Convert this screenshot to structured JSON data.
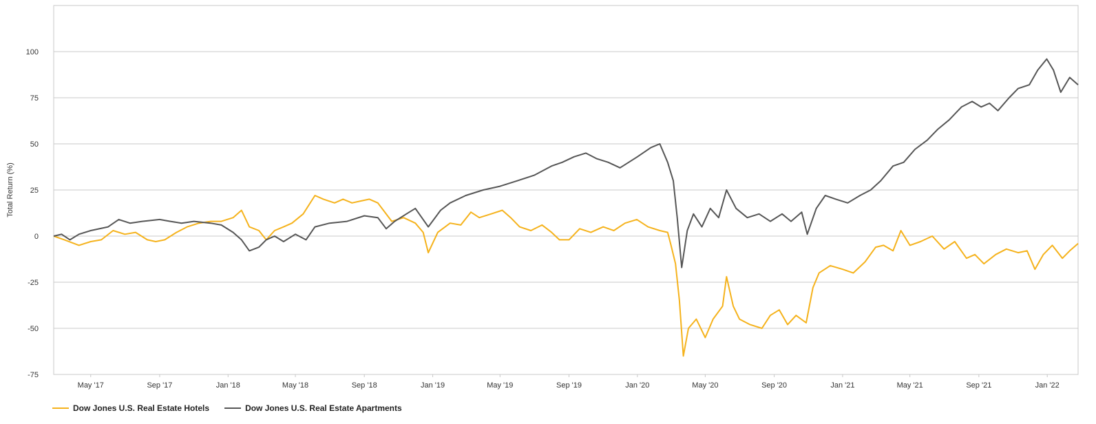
{
  "chart_data": {
    "type": "line",
    "title": "",
    "xlabel": "",
    "ylabel": "Total Return (%)",
    "ylim": [
      -75,
      125
    ],
    "xlim": [
      "2017-02-24",
      "2022-02-25"
    ],
    "yticks": [
      -75,
      -50,
      -25,
      0,
      25,
      50,
      75,
      100
    ],
    "xticks": [
      {
        "date": "2017-05-01",
        "label": "May '17"
      },
      {
        "date": "2017-09-01",
        "label": "Sep '17"
      },
      {
        "date": "2018-01-01",
        "label": "Jan '18"
      },
      {
        "date": "2018-05-01",
        "label": "May '18"
      },
      {
        "date": "2018-09-01",
        "label": "Sep '18"
      },
      {
        "date": "2019-01-01",
        "label": "Jan '19"
      },
      {
        "date": "2019-05-01",
        "label": "May '19"
      },
      {
        "date": "2019-09-01",
        "label": "Sep '19"
      },
      {
        "date": "2020-01-01",
        "label": "Jan '20"
      },
      {
        "date": "2020-05-01",
        "label": "May '20"
      },
      {
        "date": "2020-09-01",
        "label": "Sep '20"
      },
      {
        "date": "2021-01-01",
        "label": "Jan '21"
      },
      {
        "date": "2021-05-01",
        "label": "May '21"
      },
      {
        "date": "2021-09-01",
        "label": "Sep '21"
      },
      {
        "date": "2022-01-01",
        "label": "Jan '22"
      }
    ],
    "grid": "horizontal",
    "legend_position": "bottom-left",
    "series": [
      {
        "name": "Dow Jones U.S. Real Estate Hotels",
        "color": "#F5B21B",
        "points": [
          [
            "2017-02-24",
            0
          ],
          [
            "2017-03-15",
            -2
          ],
          [
            "2017-04-10",
            -5
          ],
          [
            "2017-05-01",
            -3
          ],
          [
            "2017-05-20",
            -2
          ],
          [
            "2017-06-10",
            3
          ],
          [
            "2017-07-01",
            1
          ],
          [
            "2017-07-20",
            2
          ],
          [
            "2017-08-10",
            -2
          ],
          [
            "2017-08-25",
            -3
          ],
          [
            "2017-09-10",
            -2
          ],
          [
            "2017-10-01",
            2
          ],
          [
            "2017-10-20",
            5
          ],
          [
            "2017-11-10",
            7
          ],
          [
            "2017-12-01",
            8
          ],
          [
            "2017-12-20",
            8
          ],
          [
            "2018-01-10",
            10
          ],
          [
            "2018-01-25",
            14
          ],
          [
            "2018-02-08",
            5
          ],
          [
            "2018-02-25",
            3
          ],
          [
            "2018-03-10",
            -2
          ],
          [
            "2018-03-25",
            3
          ],
          [
            "2018-04-10",
            5
          ],
          [
            "2018-04-25",
            7
          ],
          [
            "2018-05-15",
            12
          ],
          [
            "2018-06-05",
            22
          ],
          [
            "2018-06-20",
            20
          ],
          [
            "2018-07-10",
            18
          ],
          [
            "2018-07-25",
            20
          ],
          [
            "2018-08-10",
            18
          ],
          [
            "2018-08-25",
            19
          ],
          [
            "2018-09-10",
            20
          ],
          [
            "2018-09-25",
            18
          ],
          [
            "2018-10-05",
            14
          ],
          [
            "2018-10-20",
            8
          ],
          [
            "2018-11-10",
            10
          ],
          [
            "2018-12-01",
            7
          ],
          [
            "2018-12-15",
            2
          ],
          [
            "2018-12-24",
            -9
          ],
          [
            "2019-01-10",
            2
          ],
          [
            "2019-02-01",
            7
          ],
          [
            "2019-02-20",
            6
          ],
          [
            "2019-03-10",
            13
          ],
          [
            "2019-03-25",
            10
          ],
          [
            "2019-04-15",
            12
          ],
          [
            "2019-05-05",
            14
          ],
          [
            "2019-05-20",
            10
          ],
          [
            "2019-06-05",
            5
          ],
          [
            "2019-06-25",
            3
          ],
          [
            "2019-07-15",
            6
          ],
          [
            "2019-08-01",
            2
          ],
          [
            "2019-08-15",
            -2
          ],
          [
            "2019-09-01",
            -2
          ],
          [
            "2019-09-20",
            4
          ],
          [
            "2019-10-10",
            2
          ],
          [
            "2019-11-01",
            5
          ],
          [
            "2019-11-20",
            3
          ],
          [
            "2019-12-10",
            7
          ],
          [
            "2019-12-31",
            9
          ],
          [
            "2020-01-20",
            5
          ],
          [
            "2020-02-10",
            3
          ],
          [
            "2020-02-24",
            2
          ],
          [
            "2020-03-01",
            -5
          ],
          [
            "2020-03-09",
            -15
          ],
          [
            "2020-03-16",
            -35
          ],
          [
            "2020-03-23",
            -65
          ],
          [
            "2020-04-01",
            -50
          ],
          [
            "2020-04-15",
            -45
          ],
          [
            "2020-05-01",
            -55
          ],
          [
            "2020-05-15",
            -45
          ],
          [
            "2020-06-01",
            -38
          ],
          [
            "2020-06-08",
            -22
          ],
          [
            "2020-06-20",
            -38
          ],
          [
            "2020-07-01",
            -45
          ],
          [
            "2020-07-20",
            -48
          ],
          [
            "2020-08-10",
            -50
          ],
          [
            "2020-08-25",
            -43
          ],
          [
            "2020-09-10",
            -40
          ],
          [
            "2020-09-25",
            -48
          ],
          [
            "2020-10-10",
            -43
          ],
          [
            "2020-10-28",
            -47
          ],
          [
            "2020-11-09",
            -28
          ],
          [
            "2020-11-20",
            -20
          ],
          [
            "2020-12-10",
            -16
          ],
          [
            "2021-01-01",
            -18
          ],
          [
            "2021-01-20",
            -20
          ],
          [
            "2021-02-10",
            -14
          ],
          [
            "2021-03-01",
            -6
          ],
          [
            "2021-03-15",
            -5
          ],
          [
            "2021-04-01",
            -8
          ],
          [
            "2021-04-15",
            3
          ],
          [
            "2021-05-01",
            -5
          ],
          [
            "2021-05-20",
            -3
          ],
          [
            "2021-06-10",
            0
          ],
          [
            "2021-07-01",
            -7
          ],
          [
            "2021-07-20",
            -3
          ],
          [
            "2021-08-10",
            -12
          ],
          [
            "2021-08-25",
            -10
          ],
          [
            "2021-09-10",
            -15
          ],
          [
            "2021-10-01",
            -10
          ],
          [
            "2021-10-20",
            -7
          ],
          [
            "2021-11-10",
            -9
          ],
          [
            "2021-11-26",
            -8
          ],
          [
            "2021-12-10",
            -18
          ],
          [
            "2021-12-25",
            -10
          ],
          [
            "2022-01-10",
            -5
          ],
          [
            "2022-01-28",
            -12
          ],
          [
            "2022-02-10",
            -8
          ],
          [
            "2022-02-25",
            -4
          ]
        ]
      },
      {
        "name": "Dow Jones U.S. Real Estate Apartments",
        "color": "#555555",
        "points": [
          [
            "2017-02-24",
            0
          ],
          [
            "2017-03-10",
            1
          ],
          [
            "2017-03-25",
            -2
          ],
          [
            "2017-04-10",
            1
          ],
          [
            "2017-05-01",
            3
          ],
          [
            "2017-06-01",
            5
          ],
          [
            "2017-06-20",
            9
          ],
          [
            "2017-07-10",
            7
          ],
          [
            "2017-08-01",
            8
          ],
          [
            "2017-09-01",
            9
          ],
          [
            "2017-09-20",
            8
          ],
          [
            "2017-10-10",
            7
          ],
          [
            "2017-11-01",
            8
          ],
          [
            "2017-12-01",
            7
          ],
          [
            "2017-12-20",
            6
          ],
          [
            "2018-01-10",
            2
          ],
          [
            "2018-01-25",
            -2
          ],
          [
            "2018-02-08",
            -8
          ],
          [
            "2018-02-25",
            -6
          ],
          [
            "2018-03-10",
            -2
          ],
          [
            "2018-03-25",
            0
          ],
          [
            "2018-04-10",
            -3
          ],
          [
            "2018-05-01",
            1
          ],
          [
            "2018-05-20",
            -2
          ],
          [
            "2018-06-05",
            5
          ],
          [
            "2018-07-01",
            7
          ],
          [
            "2018-08-01",
            8
          ],
          [
            "2018-09-01",
            11
          ],
          [
            "2018-09-25",
            10
          ],
          [
            "2018-10-10",
            4
          ],
          [
            "2018-10-25",
            8
          ],
          [
            "2018-11-15",
            12
          ],
          [
            "2018-12-01",
            15
          ],
          [
            "2018-12-24",
            5
          ],
          [
            "2019-01-15",
            14
          ],
          [
            "2019-02-01",
            18
          ],
          [
            "2019-03-01",
            22
          ],
          [
            "2019-04-01",
            25
          ],
          [
            "2019-05-01",
            27
          ],
          [
            "2019-06-01",
            30
          ],
          [
            "2019-07-01",
            33
          ],
          [
            "2019-08-01",
            38
          ],
          [
            "2019-08-20",
            40
          ],
          [
            "2019-09-10",
            43
          ],
          [
            "2019-10-01",
            45
          ],
          [
            "2019-10-20",
            42
          ],
          [
            "2019-11-10",
            40
          ],
          [
            "2019-12-01",
            37
          ],
          [
            "2020-01-01",
            43
          ],
          [
            "2020-01-25",
            48
          ],
          [
            "2020-02-10",
            50
          ],
          [
            "2020-02-24",
            40
          ],
          [
            "2020-03-05",
            30
          ],
          [
            "2020-03-12",
            10
          ],
          [
            "2020-03-20",
            -17
          ],
          [
            "2020-03-30",
            3
          ],
          [
            "2020-04-10",
            12
          ],
          [
            "2020-04-25",
            5
          ],
          [
            "2020-05-10",
            15
          ],
          [
            "2020-05-25",
            10
          ],
          [
            "2020-06-08",
            25
          ],
          [
            "2020-06-25",
            15
          ],
          [
            "2020-07-15",
            10
          ],
          [
            "2020-08-05",
            12
          ],
          [
            "2020-08-25",
            8
          ],
          [
            "2020-09-15",
            12
          ],
          [
            "2020-10-01",
            8
          ],
          [
            "2020-10-20",
            13
          ],
          [
            "2020-10-30",
            1
          ],
          [
            "2020-11-15",
            15
          ],
          [
            "2020-12-01",
            22
          ],
          [
            "2020-12-20",
            20
          ],
          [
            "2021-01-10",
            18
          ],
          [
            "2021-02-01",
            22
          ],
          [
            "2021-02-20",
            25
          ],
          [
            "2021-03-10",
            30
          ],
          [
            "2021-04-01",
            38
          ],
          [
            "2021-04-20",
            40
          ],
          [
            "2021-05-10",
            47
          ],
          [
            "2021-06-01",
            52
          ],
          [
            "2021-06-20",
            58
          ],
          [
            "2021-07-10",
            63
          ],
          [
            "2021-08-01",
            70
          ],
          [
            "2021-08-20",
            73
          ],
          [
            "2021-09-05",
            70
          ],
          [
            "2021-09-20",
            72
          ],
          [
            "2021-10-05",
            68
          ],
          [
            "2021-10-25",
            75
          ],
          [
            "2021-11-10",
            80
          ],
          [
            "2021-11-30",
            82
          ],
          [
            "2021-12-15",
            90
          ],
          [
            "2021-12-31",
            96
          ],
          [
            "2022-01-12",
            90
          ],
          [
            "2022-01-25",
            78
          ],
          [
            "2022-02-10",
            86
          ],
          [
            "2022-02-25",
            82
          ]
        ]
      }
    ]
  }
}
